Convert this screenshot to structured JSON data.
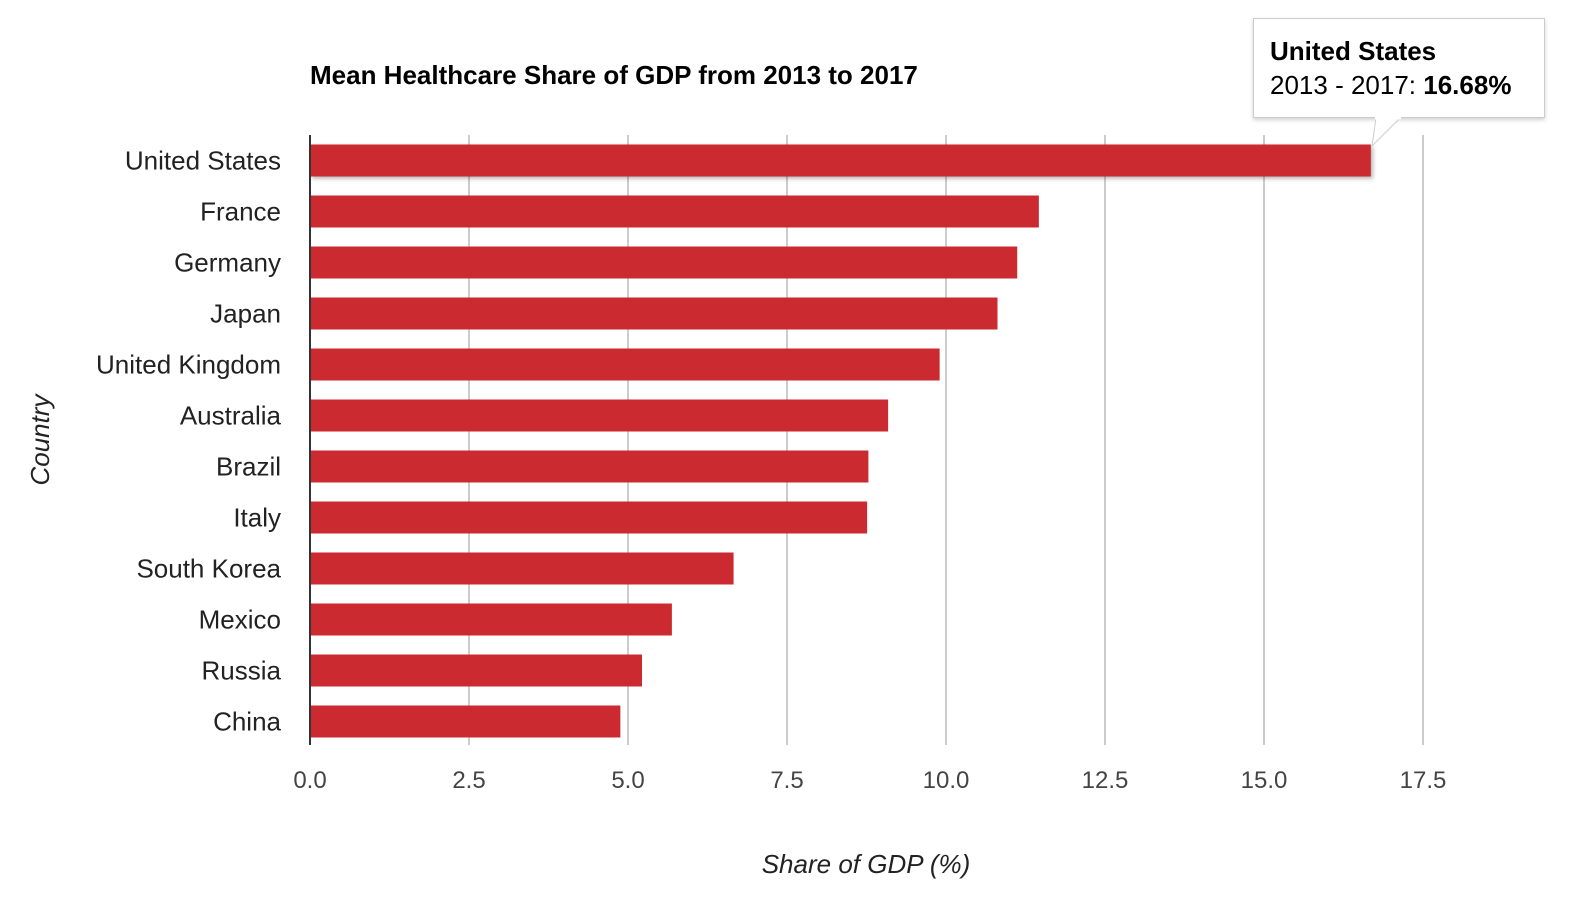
{
  "chart_data": {
    "type": "bar",
    "orientation": "horizontal",
    "title": "Mean Healthcare Share of GDP from 2013 to 2017",
    "xlabel": "Share of GDP (%)",
    "ylabel": "Country",
    "xlim": [
      0,
      19
    ],
    "xticks": [
      "0.0",
      "2.5",
      "5.0",
      "7.5",
      "10.0",
      "12.5",
      "15.0",
      "17.5"
    ],
    "grid": true,
    "bar_color": "#cb2a30",
    "categories": [
      "United States",
      "France",
      "Germany",
      "Japan",
      "United Kingdom",
      "Australia",
      "Brazil",
      "Italy",
      "South Korea",
      "Mexico",
      "Russia",
      "China"
    ],
    "values": [
      16.68,
      11.46,
      11.12,
      10.81,
      9.9,
      9.09,
      8.78,
      8.76,
      6.66,
      5.69,
      5.22,
      4.88
    ]
  },
  "tooltip": {
    "name": "United States",
    "range_label": "2013 - 2017:",
    "value": "16.68%"
  }
}
